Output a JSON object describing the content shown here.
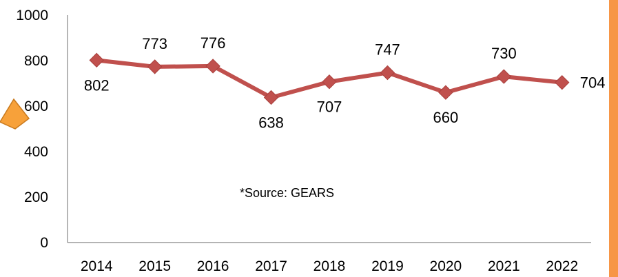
{
  "chart_data": {
    "type": "line",
    "categories": [
      "2014",
      "2015",
      "2016",
      "2017",
      "2018",
      "2019",
      "2020",
      "2021",
      "2022"
    ],
    "series": [
      {
        "values": [
          802,
          773,
          776,
          638,
          707,
          747,
          660,
          730,
          704
        ],
        "color": "#c0504d",
        "marker": "diamond"
      }
    ],
    "yticks": [
      "0",
      "200",
      "400",
      "600",
      "800",
      "1000"
    ],
    "ylim": [
      0,
      1000
    ],
    "grid": false,
    "annotation": "*Source:  GEARS",
    "data_labels": [
      "802",
      "773",
      "776",
      "638",
      "707",
      "747",
      "660",
      "730",
      "704"
    ],
    "label_positions": [
      "below",
      "above",
      "above",
      "below",
      "below",
      "above",
      "below",
      "above",
      "right"
    ]
  },
  "decorations": {
    "left_arrow_color": "#f7a13a",
    "right_border_color": "#f79646"
  }
}
